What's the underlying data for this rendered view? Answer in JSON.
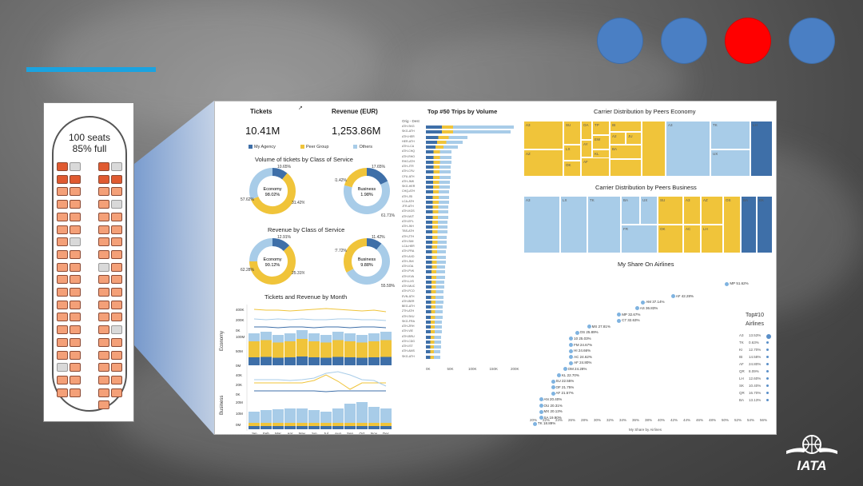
{
  "colors": {
    "accent": "#1aa3e0",
    "blue": "#4a7fc4",
    "red": "#ff0000",
    "seat_booked": "#f4a078",
    "seat_free": "#d9d9d9",
    "seat_dark": "#e05a30",
    "my_agency": "#3e6fa8",
    "peer_group": "#f0c43a",
    "others": "#a8cce8"
  },
  "header": {
    "circles": [
      "blue",
      "blue",
      "red",
      "blue"
    ]
  },
  "seatmap": {
    "line1": "100 seats",
    "line2": "85% full"
  },
  "dashboard": {
    "tickets_title": "Tickets",
    "revenue_title": "Revenue (EUR)",
    "tickets_value": "10.41M",
    "revenue_value": "1,253.86M",
    "legend": [
      "My Agency",
      "Peer Group",
      "Others"
    ],
    "vol_title": "Volume of tickets by Class of Service",
    "rev_title": "Revenue by Class of Service",
    "trend_title": "Tickets and Revenue by Month",
    "top_title": "Top #50 Trips by Volume",
    "top_axis_label": "Orig - Dest",
    "eco_tree_title": "Carrier Distribution by Peers Economy",
    "bus_tree_title": "Carrier Distribution by Peers Business",
    "share_title": "My Share On Airlines",
    "share_axis": "My Share by Airlines",
    "top10_title": "Top#10",
    "top10_sub": "Airlines",
    "donuts": [
      {
        "name": "Economy",
        "pct": "98.02%",
        "l1": "10.65%",
        "l2": "57.62%",
        "l3": "31.42%"
      },
      {
        "name": "Business",
        "pct": "1.98%",
        "l1": "17.65%",
        "l2": "31.42%",
        "l3": "61.71%"
      },
      {
        "name": "Economy",
        "pct": "90.12%",
        "l1": "12.91%",
        "l2": "62.28%",
        "l3": "25.31%"
      },
      {
        "name": "Business",
        "pct": "9.88%",
        "l1": "11.42%",
        "l2": "27.72%",
        "l3": "55.59%"
      }
    ],
    "months": [
      "Jan",
      "Feb",
      "Mar",
      "Apr",
      "May",
      "Jun",
      "Jul",
      "Aug",
      "Sep",
      "Oct",
      "Nov",
      "Dec"
    ],
    "eco_label": "Economy",
    "bus_label": "Business",
    "trend_y_labels": [
      "400K",
      "200K",
      "0K",
      "100M",
      "50M",
      "0M",
      "40K",
      "20K",
      "0K",
      "20M",
      "10M",
      "0M"
    ],
    "top_x_ticks": [
      "0K",
      "50K",
      "100K",
      "150K",
      "200K"
    ],
    "share_x_ticks": [
      "20%",
      "22%",
      "24%",
      "26%",
      "28%",
      "30%",
      "32%",
      "34%",
      "36%",
      "38%",
      "40%",
      "42%",
      "44%",
      "46%",
      "48%",
      "50%",
      "52%",
      "54%",
      "56%"
    ],
    "routes": [
      "ATH-SKG",
      "SKG-ATH",
      "ATH-HER",
      "HER-ATH",
      "ATH-LCA",
      "ATH-CHQ",
      "ATH-RHO",
      "RHO-ATH",
      "ATH-JTR",
      "ATH-CFU",
      "CFU-ATH",
      "ATH-JMK",
      "SKG-HER",
      "CHQ-ATH",
      "ATH-JSI",
      "LCA-ATH",
      "JTR-ATH",
      "ATH-KGS",
      "ATH-MJT",
      "ATH-EFL",
      "ATH-JKH",
      "TBS-ATH",
      "ATH-ZTH",
      "ATH-SMI",
      "LCA-HER",
      "ATH-FRA",
      "ATH-AXD",
      "ATH-JNX",
      "ATH-IOA",
      "ATH-PVK",
      "ATH-KVA",
      "ATH-LXS",
      "ATH-MUC",
      "ATH-FCO",
      "EVN-ATH",
      "ATH-BER",
      "BEG-ATH",
      "ZTH-ATH",
      "ATH-SKU",
      "SKG-FRA",
      "ATH-ZRH",
      "ATH-VIE",
      "ATH-BRU",
      "ATH-CDG",
      "ATH-IST",
      "ATH-AMS",
      "SKG-ATH"
    ],
    "eco_cells": [
      "A3",
      "SU",
      "OA",
      "TP",
      "IB",
      "A2",
      "JU",
      "AY",
      "EW",
      "LX",
      "BA",
      "AZ",
      "KL",
      "OK",
      "AF",
      "A3",
      "TK",
      "LH",
      "UX"
    ],
    "bus_cells": [
      "A3",
      "LX",
      "TK",
      "BA",
      "UX",
      "SU",
      "A3",
      "AZ",
      "OS",
      "BA",
      "EK",
      "OK",
      "AC",
      "LH",
      "FR",
      "TK"
    ],
    "share_points": [
      "VY 62.37%",
      "MP 51.62%",
      "AF 42.28%",
      "AM 37.14%",
      "AS 36.83%",
      "MP 32.67%",
      "C7 32.63%",
      "MS 27.81%",
      "OS 25.89%",
      "10 25.03%",
      "FM 24.67%",
      "HI 24.66%",
      "AC 24.62%",
      "AF 24.80%",
      "OM 24.28%",
      "KL 22.70%",
      "SU 22.55%",
      "OF 21.75%",
      "AF 21.57%",
      "AN 20.40%",
      "OU 20.31%",
      "MX 20.13%",
      "SA 19.90%",
      "TK 18.89%"
    ],
    "top10": [
      [
        "A3",
        "13.53%"
      ],
      [
        "TK",
        "0.63%"
      ],
      [
        "KI",
        "12.70%"
      ],
      [
        "IB",
        "14.58%"
      ],
      [
        "AF",
        "24.80%"
      ],
      [
        "QR",
        "8.09%"
      ],
      [
        "LH",
        "12.60%"
      ],
      [
        "SK",
        "10.40%"
      ],
      [
        "QR",
        "16.70%"
      ],
      [
        "BA",
        "13.13%"
      ]
    ]
  },
  "logo": {
    "text": "IATA"
  }
}
